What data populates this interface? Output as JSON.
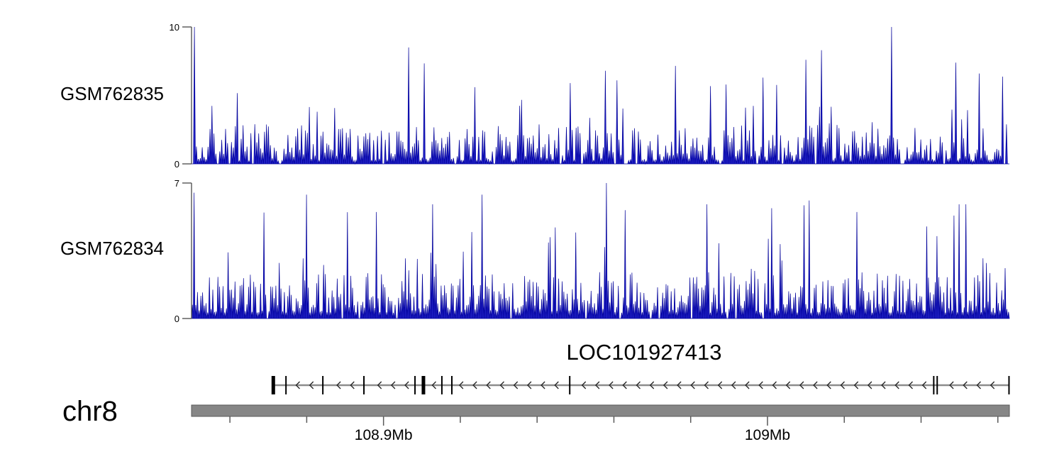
{
  "chart_data": {
    "type": "area",
    "description": "Genome browser coverage plot: two read-coverage tracks over a gene model and chromosome axis",
    "x_axis": {
      "chromosome": "chr8",
      "unit": "Mb",
      "range_mb": [
        108.85,
        109.063
      ],
      "major_ticks": [
        {
          "mb": 108.9,
          "label": "108.9Mb"
        },
        {
          "mb": 109.0,
          "label": "109Mb"
        }
      ],
      "minor_tick_step_mb": 0.02,
      "grid": false
    },
    "tracks": [
      {
        "label": "GSM762835",
        "ylim": [
          0,
          10
        ],
        "y_top_label": "10",
        "y_bottom_label": "0",
        "n_points": 420,
        "seed": 7,
        "base_min": 0.22,
        "base_range": 2.7,
        "spike_prob": 0.08,
        "spike_scale": 3.3,
        "gap_prob": 0.055,
        "landmark_peaks": [
          {
            "frac": 0.002,
            "value": 10
          },
          {
            "frac": 0.265,
            "value": 8.5
          },
          {
            "frac": 0.345,
            "value": 5.6
          },
          {
            "frac": 0.463,
            "value": 5.9
          },
          {
            "frac": 0.52,
            "value": 6.1
          },
          {
            "frac": 0.655,
            "value": 5.8
          },
          {
            "frac": 0.7,
            "value": 6.3
          },
          {
            "frac": 0.752,
            "value": 7.6
          },
          {
            "frac": 0.772,
            "value": 8.3
          },
          {
            "frac": 0.857,
            "value": 10
          },
          {
            "frac": 0.935,
            "value": 7.4
          },
          {
            "frac": 0.965,
            "value": 6.6
          }
        ]
      },
      {
        "label": "GSM762834",
        "ylim": [
          0,
          7
        ],
        "y_top_label": "7",
        "y_bottom_label": "0",
        "n_points": 480,
        "seed": 13,
        "base_min": 0.3,
        "base_range": 2.1,
        "spike_prob": 0.09,
        "spike_scale": 2.5,
        "gap_prob": 0.02,
        "landmark_peaks": [
          {
            "frac": 0.002,
            "value": 6.5
          },
          {
            "frac": 0.14,
            "value": 6.4
          },
          {
            "frac": 0.225,
            "value": 5.5
          },
          {
            "frac": 0.295,
            "value": 5.9
          },
          {
            "frac": 0.355,
            "value": 6.4
          },
          {
            "frac": 0.507,
            "value": 7
          },
          {
            "frac": 0.53,
            "value": 5.6
          },
          {
            "frac": 0.63,
            "value": 5.9
          },
          {
            "frac": 0.71,
            "value": 5.7
          },
          {
            "frac": 0.755,
            "value": 6.1
          },
          {
            "frac": 0.815,
            "value": 5.5
          },
          {
            "frac": 0.94,
            "value": 5.9
          },
          {
            "frac": 0.948,
            "value": 5.9
          }
        ]
      }
    ],
    "gene": {
      "label": "LOC101927413",
      "strand": "-",
      "start_mb": 108.8713,
      "end_mb": 109.063,
      "exons_mb": [
        {
          "mb": 108.8713,
          "w": 5
        },
        {
          "mb": 108.8746,
          "w": 2
        },
        {
          "mb": 108.8842,
          "w": 2
        },
        {
          "mb": 108.8949,
          "w": 2
        },
        {
          "mb": 108.9082,
          "w": 2
        },
        {
          "mb": 108.9104,
          "w": 5
        },
        {
          "mb": 108.9152,
          "w": 2
        },
        {
          "mb": 108.9178,
          "w": 2
        },
        {
          "mb": 108.9485,
          "w": 2
        },
        {
          "mb": 109.0433,
          "w": 2
        },
        {
          "mb": 109.0442,
          "w": 2
        },
        {
          "mb": 109.0629,
          "w": 2
        }
      ]
    }
  },
  "colors": {
    "coverage_fill": "#2121c8",
    "coverage_stroke": "#000099",
    "axis_line": "#555555",
    "gene_line": "#8c8c8c",
    "gene_arrow": "#222222",
    "exon": "#000000",
    "chrom_bar_fill": "#868686",
    "chrom_bar_stroke": "#5a5a5a",
    "tick": "#5a5a5a",
    "text": "#000000"
  }
}
